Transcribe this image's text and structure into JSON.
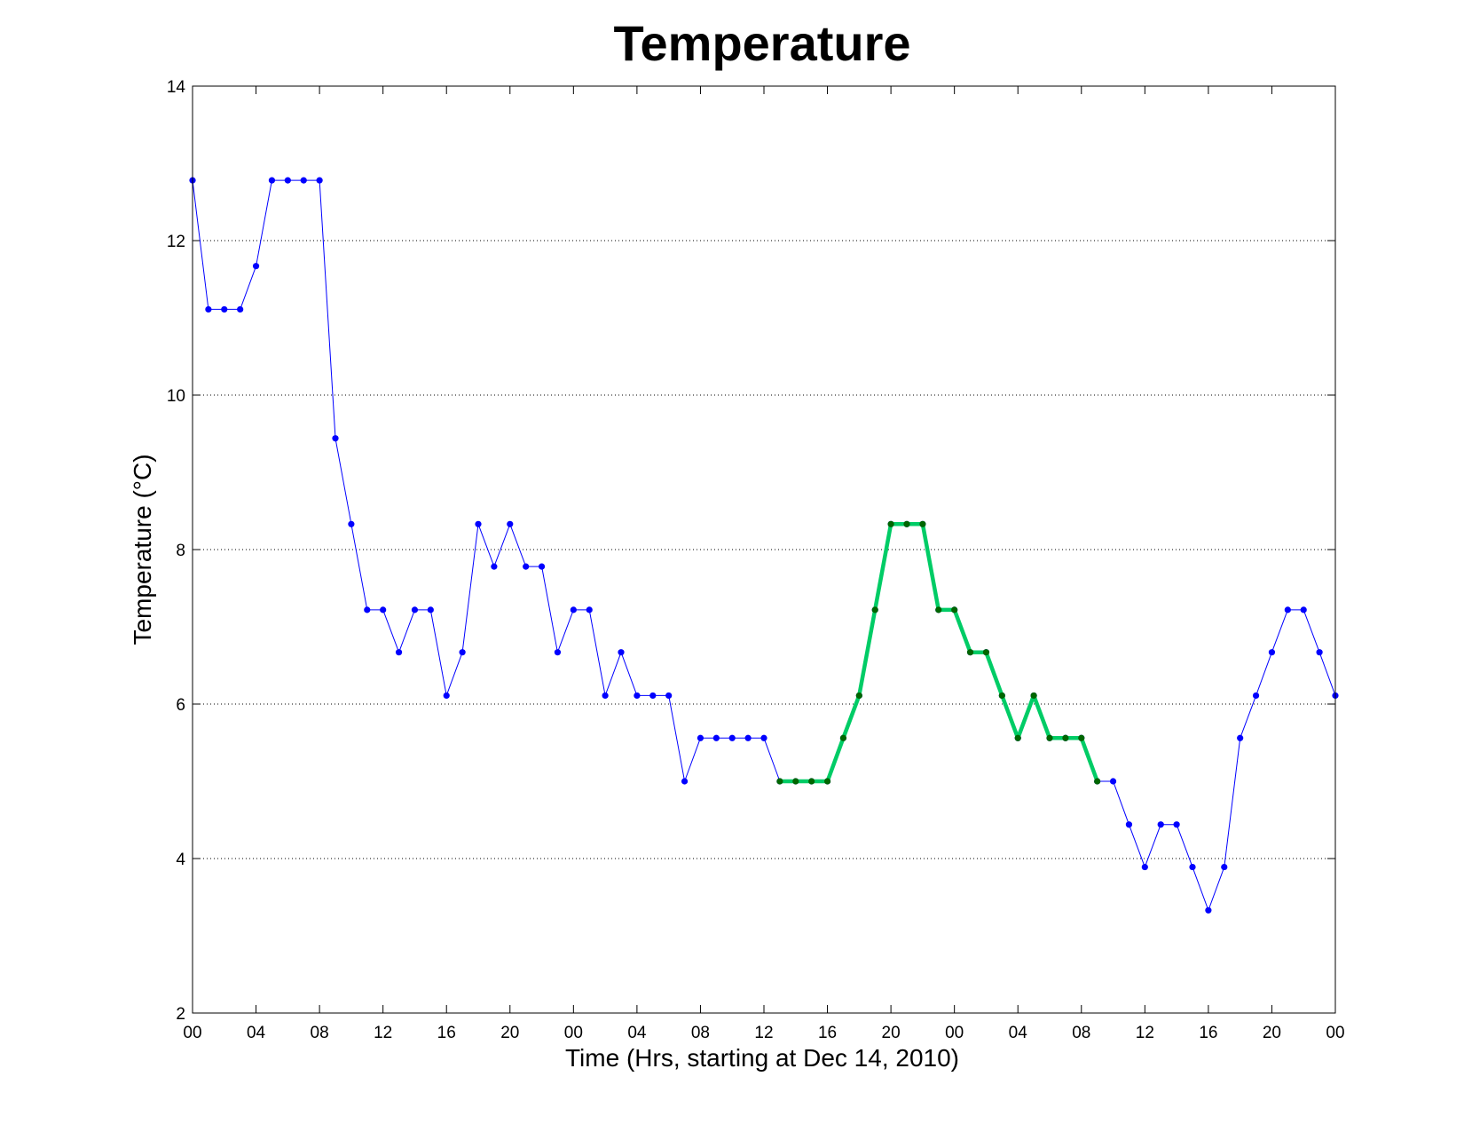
{
  "chart_data": {
    "type": "line",
    "title": "Temperature",
    "xlabel": "Time (Hrs, starting at Dec 14, 2010)",
    "ylabel": "Temperature (°C)",
    "ylim": [
      2,
      14
    ],
    "y_ticks": [
      2,
      4,
      6,
      8,
      10,
      12,
      14
    ],
    "xlim": [
      0,
      72
    ],
    "x_ticks": [
      0,
      4,
      8,
      12,
      16,
      20,
      24,
      28,
      32,
      36,
      40,
      44,
      48,
      52,
      56,
      60,
      64,
      68,
      72
    ],
    "x_tick_labels": [
      "00",
      "04",
      "08",
      "12",
      "16",
      "20",
      "00",
      "04",
      "08",
      "12",
      "16",
      "20",
      "00",
      "04",
      "08",
      "12",
      "16",
      "20",
      "00"
    ],
    "grid": "horizontal-dotted",
    "series": [
      {
        "color": "#0000ff",
        "marker_color": "#0000ff",
        "x": [
          0,
          1,
          2,
          3,
          4,
          5,
          6,
          7,
          8,
          9,
          10,
          11,
          12,
          13,
          14,
          15,
          16,
          17,
          18,
          19,
          20,
          21,
          22,
          23,
          24,
          25,
          26,
          27,
          28,
          29,
          30,
          31,
          32,
          33,
          34,
          35,
          36,
          37,
          38,
          39,
          40,
          41,
          42,
          43,
          44,
          45,
          46,
          47,
          48,
          49,
          50,
          51,
          52,
          53,
          54,
          55,
          56,
          57,
          58,
          59,
          60,
          61,
          62,
          63,
          64,
          65,
          66,
          67,
          68,
          69,
          70,
          71,
          72
        ],
        "y": [
          12.78,
          11.11,
          11.11,
          11.11,
          11.67,
          12.78,
          12.78,
          12.78,
          12.78,
          9.44,
          8.33,
          7.22,
          7.22,
          6.67,
          7.22,
          7.22,
          6.11,
          6.67,
          8.33,
          7.78,
          8.33,
          7.78,
          7.78,
          6.67,
          7.22,
          7.22,
          6.11,
          6.67,
          6.11,
          6.11,
          6.11,
          5.0,
          5.56,
          5.56,
          5.56,
          5.56,
          5.56,
          5.0,
          5.0,
          5.0,
          5.0,
          5.56,
          6.11,
          7.22,
          8.33,
          8.33,
          8.33,
          7.22,
          7.22,
          6.67,
          6.67,
          6.11,
          5.56,
          6.11,
          5.56,
          5.56,
          5.56,
          5.0,
          5.0,
          4.44,
          3.89,
          4.44,
          4.44,
          3.89,
          3.33,
          3.89,
          5.56,
          6.11,
          6.67,
          7.22,
          7.22,
          6.67,
          6.11
        ]
      },
      {
        "color": "#00cc66",
        "marker_color": "#006600",
        "x": [
          37,
          38,
          39,
          40,
          41,
          42,
          43,
          44,
          45,
          46,
          47,
          48,
          49,
          50,
          51,
          52,
          53,
          54,
          55,
          56,
          57
        ],
        "y": [
          5.0,
          5.0,
          5.0,
          5.0,
          5.56,
          6.11,
          7.22,
          8.33,
          8.33,
          8.33,
          7.22,
          7.22,
          6.67,
          6.67,
          6.11,
          5.56,
          6.11,
          5.56,
          5.56,
          5.56,
          5.0
        ]
      }
    ]
  }
}
